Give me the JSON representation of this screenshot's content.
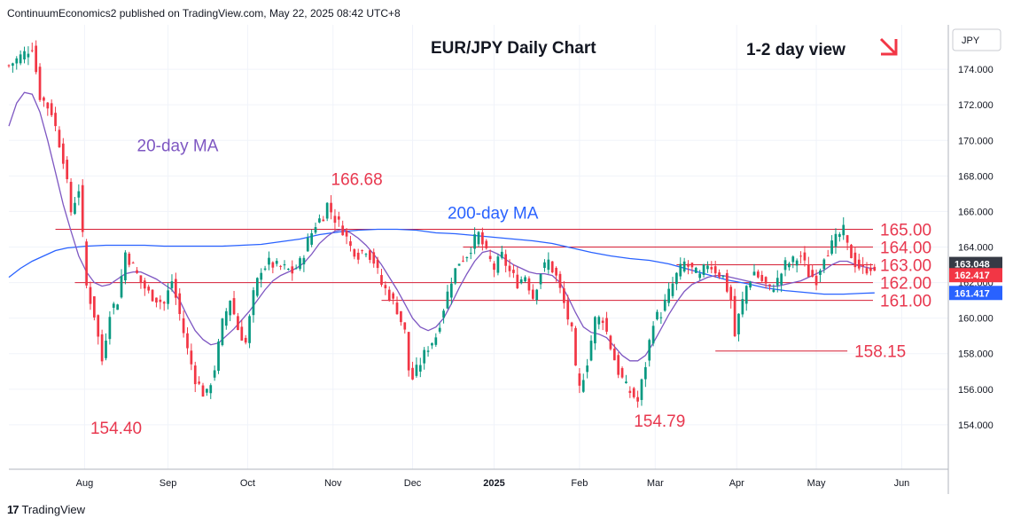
{
  "header": "ContinuumEconomics2 published on TradingView.com, May 22, 2025 08:42 UTC+8",
  "footer": {
    "brand": "TradingView",
    "logo_glyph": "17"
  },
  "currency_label": "JPY",
  "colors": {
    "up": "#089981",
    "down": "#f23645",
    "ma20": "#7e57c2",
    "ma200": "#2962ff",
    "level": "#d61f35",
    "label": "#e8384f",
    "price_current": "#363a45"
  },
  "chart_data": {
    "type": "candlestick",
    "title": "EUR/JPY Daily Chart",
    "view_label": "1-2 day view",
    "view_arrow": "down-right-arrow",
    "ylim": [
      151.5,
      176.5
    ],
    "xlim": [
      0,
      242
    ],
    "y_ticks": [
      154,
      156,
      158,
      160,
      162,
      164,
      166,
      168,
      170,
      172,
      174
    ],
    "y_tick_labels": [
      "154.000",
      "156.000",
      "158.000",
      "160.000",
      "162.000",
      "164.000",
      "166.000",
      "168.000",
      "170.000",
      "172.000",
      "174.000"
    ],
    "x_ticks": [
      {
        "label": "Aug",
        "x": 19.5
      },
      {
        "label": "Sep",
        "x": 41
      },
      {
        "label": "Oct",
        "x": 61.5
      },
      {
        "label": "Nov",
        "x": 83.5
      },
      {
        "label": "Dec",
        "x": 104
      },
      {
        "label": "2025",
        "x": 125
      },
      {
        "label": "Feb",
        "x": 147
      },
      {
        "label": "Mar",
        "x": 166.5
      },
      {
        "label": "Apr",
        "x": 187.5
      },
      {
        "label": "May",
        "x": 208
      },
      {
        "label": "Jun",
        "x": 230
      }
    ],
    "levels": [
      {
        "value": 165.0,
        "label": "165.00",
        "x_start": 12
      },
      {
        "value": 164.0,
        "label": "164.00",
        "x_start": 117
      },
      {
        "value": 163.0,
        "label": "163.00",
        "x_start": 172
      },
      {
        "value": 162.0,
        "label": "162.00",
        "x_start": 17
      },
      {
        "value": 161.0,
        "label": "161.00",
        "x_start": 96
      },
      {
        "value": 158.15,
        "label": "158.15",
        "x_start": 182,
        "x_end": 216
      }
    ],
    "annotations": [
      {
        "text": "166.68",
        "x": 83,
        "y": 167.5
      },
      {
        "text": "154.40",
        "x": 21,
        "y": 153.5
      },
      {
        "text": "154.79",
        "x": 161,
        "y": 153.9
      },
      {
        "text": "20-day MA",
        "x": 33,
        "y": 169.4,
        "kind": "ma20"
      },
      {
        "text": "200-day MA",
        "x": 113,
        "y": 165.6,
        "kind": "ma200"
      }
    ],
    "current_prices": [
      {
        "value": 163.048,
        "label": "163.048",
        "kind": "price_current"
      },
      {
        "value": 162.417,
        "label": "162.417",
        "kind": "down"
      },
      {
        "value": 161.417,
        "label": "161.417",
        "kind": "ma200"
      }
    ],
    "anchors": [
      [
        0,
        174.2
      ],
      [
        4,
        174.9
      ],
      [
        6,
        175.3
      ],
      [
        8,
        172.5
      ],
      [
        11,
        171.6
      ],
      [
        14,
        169.0
      ],
      [
        16,
        166.0
      ],
      [
        18,
        167.3
      ],
      [
        20,
        161.8
      ],
      [
        22,
        160.2
      ],
      [
        24,
        157.6
      ],
      [
        26,
        160.4
      ],
      [
        28,
        161.0
      ],
      [
        30,
        163.7
      ],
      [
        32,
        162.9
      ],
      [
        34,
        162.0
      ],
      [
        36,
        161.4
      ],
      [
        38,
        161.1
      ],
      [
        40,
        160.8
      ],
      [
        42,
        162.1
      ],
      [
        44,
        160.2
      ],
      [
        46,
        158.2
      ],
      [
        48,
        156.6
      ],
      [
        50,
        155.8
      ],
      [
        51,
        155.7
      ],
      [
        53,
        157.2
      ],
      [
        55,
        159.7
      ],
      [
        57,
        161.1
      ],
      [
        59,
        159.4
      ],
      [
        61,
        158.6
      ],
      [
        63,
        161.3
      ],
      [
        65,
        162.8
      ],
      [
        67,
        163.1
      ],
      [
        69,
        162.9
      ],
      [
        71,
        162.8
      ],
      [
        73,
        162.6
      ],
      [
        75,
        163.1
      ],
      [
        77,
        164.3
      ],
      [
        79,
        165.3
      ],
      [
        81,
        165.8
      ],
      [
        82,
        166.4
      ],
      [
        84,
        165.6
      ],
      [
        86,
        165.0
      ],
      [
        88,
        164.0
      ],
      [
        90,
        163.6
      ],
      [
        92,
        163.9
      ],
      [
        94,
        163.2
      ],
      [
        96,
        161.9
      ],
      [
        98,
        161.3
      ],
      [
        100,
        160.5
      ],
      [
        102,
        159.2
      ],
      [
        103,
        157.1
      ],
      [
        104,
        156.6
      ],
      [
        106,
        157.5
      ],
      [
        108,
        158.4
      ],
      [
        110,
        159.0
      ],
      [
        112,
        160.6
      ],
      [
        114,
        162.2
      ],
      [
        116,
        163.2
      ],
      [
        118,
        163.6
      ],
      [
        120,
        164.4
      ],
      [
        121,
        164.7
      ],
      [
        123,
        163.6
      ],
      [
        125,
        162.8
      ],
      [
        127,
        163.5
      ],
      [
        129,
        162.6
      ],
      [
        131,
        162.0
      ],
      [
        133,
        162.4
      ],
      [
        135,
        161.2
      ],
      [
        137,
        162.6
      ],
      [
        139,
        163.2
      ],
      [
        141,
        162.3
      ],
      [
        143,
        160.8
      ],
      [
        145,
        159.2
      ],
      [
        146,
        157.0
      ],
      [
        147,
        156.0
      ],
      [
        149,
        157.6
      ],
      [
        151,
        159.9
      ],
      [
        153,
        160.0
      ],
      [
        155,
        158.4
      ],
      [
        157,
        157.0
      ],
      [
        159,
        156.1
      ],
      [
        161,
        155.6
      ],
      [
        162,
        155.3
      ],
      [
        164,
        157.4
      ],
      [
        166,
        159.9
      ],
      [
        168,
        160.3
      ],
      [
        170,
        161.4
      ],
      [
        172,
        162.4
      ],
      [
        174,
        163.1
      ],
      [
        176,
        162.7
      ],
      [
        178,
        162.3
      ],
      [
        180,
        163.1
      ],
      [
        182,
        162.7
      ],
      [
        184,
        162.3
      ],
      [
        186,
        161.0
      ],
      [
        187,
        159.0
      ],
      [
        188,
        160.1
      ],
      [
        190,
        161.8
      ],
      [
        192,
        162.6
      ],
      [
        194,
        162.1
      ],
      [
        196,
        161.6
      ],
      [
        198,
        162.1
      ],
      [
        200,
        163.0
      ],
      [
        202,
        163.2
      ],
      [
        204,
        163.5
      ],
      [
        206,
        162.5
      ],
      [
        208,
        162.2
      ],
      [
        210,
        163.6
      ],
      [
        212,
        164.1
      ],
      [
        214,
        164.7
      ],
      [
        215,
        164.9
      ],
      [
        216,
        164.0
      ],
      [
        218,
        163.1
      ],
      [
        220,
        162.7
      ],
      [
        222,
        162.9
      ],
      [
        223,
        162.4
      ]
    ],
    "ma20": [
      [
        0,
        170.8
      ],
      [
        2,
        172.1
      ],
      [
        4,
        172.7
      ],
      [
        6,
        172.6
      ],
      [
        8,
        171.6
      ],
      [
        10,
        170.0
      ],
      [
        12,
        168.2
      ],
      [
        14,
        166.4
      ],
      [
        16,
        164.9
      ],
      [
        18,
        163.5
      ],
      [
        20,
        162.6
      ],
      [
        22,
        162.0
      ],
      [
        24,
        161.8
      ],
      [
        26,
        161.9
      ],
      [
        28,
        162.2
      ],
      [
        30,
        162.5
      ],
      [
        32,
        162.6
      ],
      [
        34,
        162.6
      ],
      [
        36,
        162.4
      ],
      [
        38,
        162.2
      ],
      [
        40,
        161.9
      ],
      [
        42,
        161.6
      ],
      [
        44,
        161.0
      ],
      [
        46,
        160.1
      ],
      [
        48,
        159.3
      ],
      [
        50,
        158.8
      ],
      [
        52,
        158.5
      ],
      [
        54,
        158.6
      ],
      [
        56,
        159.0
      ],
      [
        58,
        159.4
      ],
      [
        60,
        159.9
      ],
      [
        62,
        160.4
      ],
      [
        64,
        161.0
      ],
      [
        66,
        161.6
      ],
      [
        68,
        162.1
      ],
      [
        70,
        162.4
      ],
      [
        72,
        162.6
      ],
      [
        74,
        162.8
      ],
      [
        76,
        163.1
      ],
      [
        78,
        163.6
      ],
      [
        80,
        164.2
      ],
      [
        82,
        164.6
      ],
      [
        84,
        164.9
      ],
      [
        86,
        165.0
      ],
      [
        88,
        164.8
      ],
      [
        90,
        164.5
      ],
      [
        92,
        164.1
      ],
      [
        94,
        163.6
      ],
      [
        96,
        163.0
      ],
      [
        98,
        162.3
      ],
      [
        100,
        161.6
      ],
      [
        102,
        160.8
      ],
      [
        104,
        160.0
      ],
      [
        106,
        159.5
      ],
      [
        108,
        159.3
      ],
      [
        110,
        159.5
      ],
      [
        112,
        160.0
      ],
      [
        114,
        160.8
      ],
      [
        116,
        161.7
      ],
      [
        118,
        162.5
      ],
      [
        120,
        163.2
      ],
      [
        122,
        163.7
      ],
      [
        124,
        163.8
      ],
      [
        126,
        163.6
      ],
      [
        128,
        163.3
      ],
      [
        130,
        163.0
      ],
      [
        132,
        162.8
      ],
      [
        134,
        162.6
      ],
      [
        136,
        162.5
      ],
      [
        138,
        162.5
      ],
      [
        140,
        162.4
      ],
      [
        142,
        162.0
      ],
      [
        144,
        161.2
      ],
      [
        146,
        160.3
      ],
      [
        148,
        159.5
      ],
      [
        150,
        159.2
      ],
      [
        152,
        159.1
      ],
      [
        154,
        158.9
      ],
      [
        156,
        158.4
      ],
      [
        158,
        157.9
      ],
      [
        160,
        157.6
      ],
      [
        162,
        157.6
      ],
      [
        164,
        157.9
      ],
      [
        166,
        158.6
      ],
      [
        168,
        159.4
      ],
      [
        170,
        160.2
      ],
      [
        172,
        160.9
      ],
      [
        174,
        161.5
      ],
      [
        176,
        161.9
      ],
      [
        178,
        162.1
      ],
      [
        180,
        162.3
      ],
      [
        182,
        162.4
      ],
      [
        184,
        162.4
      ],
      [
        186,
        162.3
      ],
      [
        188,
        162.2
      ],
      [
        190,
        162.1
      ],
      [
        192,
        162.0
      ],
      [
        194,
        161.9
      ],
      [
        196,
        161.8
      ],
      [
        198,
        161.8
      ],
      [
        200,
        161.9
      ],
      [
        202,
        162.0
      ],
      [
        204,
        162.1
      ],
      [
        206,
        162.3
      ],
      [
        208,
        162.5
      ],
      [
        210,
        162.7
      ],
      [
        212,
        163.0
      ],
      [
        214,
        163.2
      ],
      [
        216,
        163.2
      ],
      [
        218,
        163.0
      ],
      [
        220,
        162.9
      ],
      [
        222,
        162.8
      ],
      [
        223,
        162.8
      ]
    ],
    "ma200": [
      [
        0,
        162.3
      ],
      [
        3,
        162.8
      ],
      [
        6,
        163.2
      ],
      [
        9,
        163.5
      ],
      [
        12,
        163.8
      ],
      [
        15,
        163.95
      ],
      [
        20,
        164.05
      ],
      [
        25,
        164.1
      ],
      [
        30,
        164.1
      ],
      [
        35,
        164.1
      ],
      [
        40,
        164.05
      ],
      [
        45,
        164.05
      ],
      [
        50,
        164.05
      ],
      [
        55,
        164.05
      ],
      [
        60,
        164.1
      ],
      [
        65,
        164.15
      ],
      [
        70,
        164.3
      ],
      [
        75,
        164.45
      ],
      [
        80,
        164.7
      ],
      [
        85,
        164.85
      ],
      [
        90,
        164.95
      ],
      [
        95,
        165.0
      ],
      [
        100,
        165.0
      ],
      [
        105,
        164.95
      ],
      [
        110,
        164.8
      ],
      [
        115,
        164.75
      ],
      [
        120,
        164.65
      ],
      [
        125,
        164.55
      ],
      [
        130,
        164.45
      ],
      [
        135,
        164.35
      ],
      [
        140,
        164.2
      ],
      [
        145,
        163.95
      ],
      [
        150,
        163.7
      ],
      [
        155,
        163.5
      ],
      [
        160,
        163.35
      ],
      [
        165,
        163.25
      ],
      [
        170,
        163.05
      ],
      [
        175,
        162.75
      ],
      [
        180,
        162.45
      ],
      [
        185,
        162.15
      ],
      [
        190,
        161.95
      ],
      [
        195,
        161.7
      ],
      [
        200,
        161.55
      ],
      [
        205,
        161.45
      ],
      [
        210,
        161.35
      ],
      [
        215,
        161.35
      ],
      [
        220,
        161.4
      ],
      [
        223,
        161.42
      ]
    ]
  }
}
